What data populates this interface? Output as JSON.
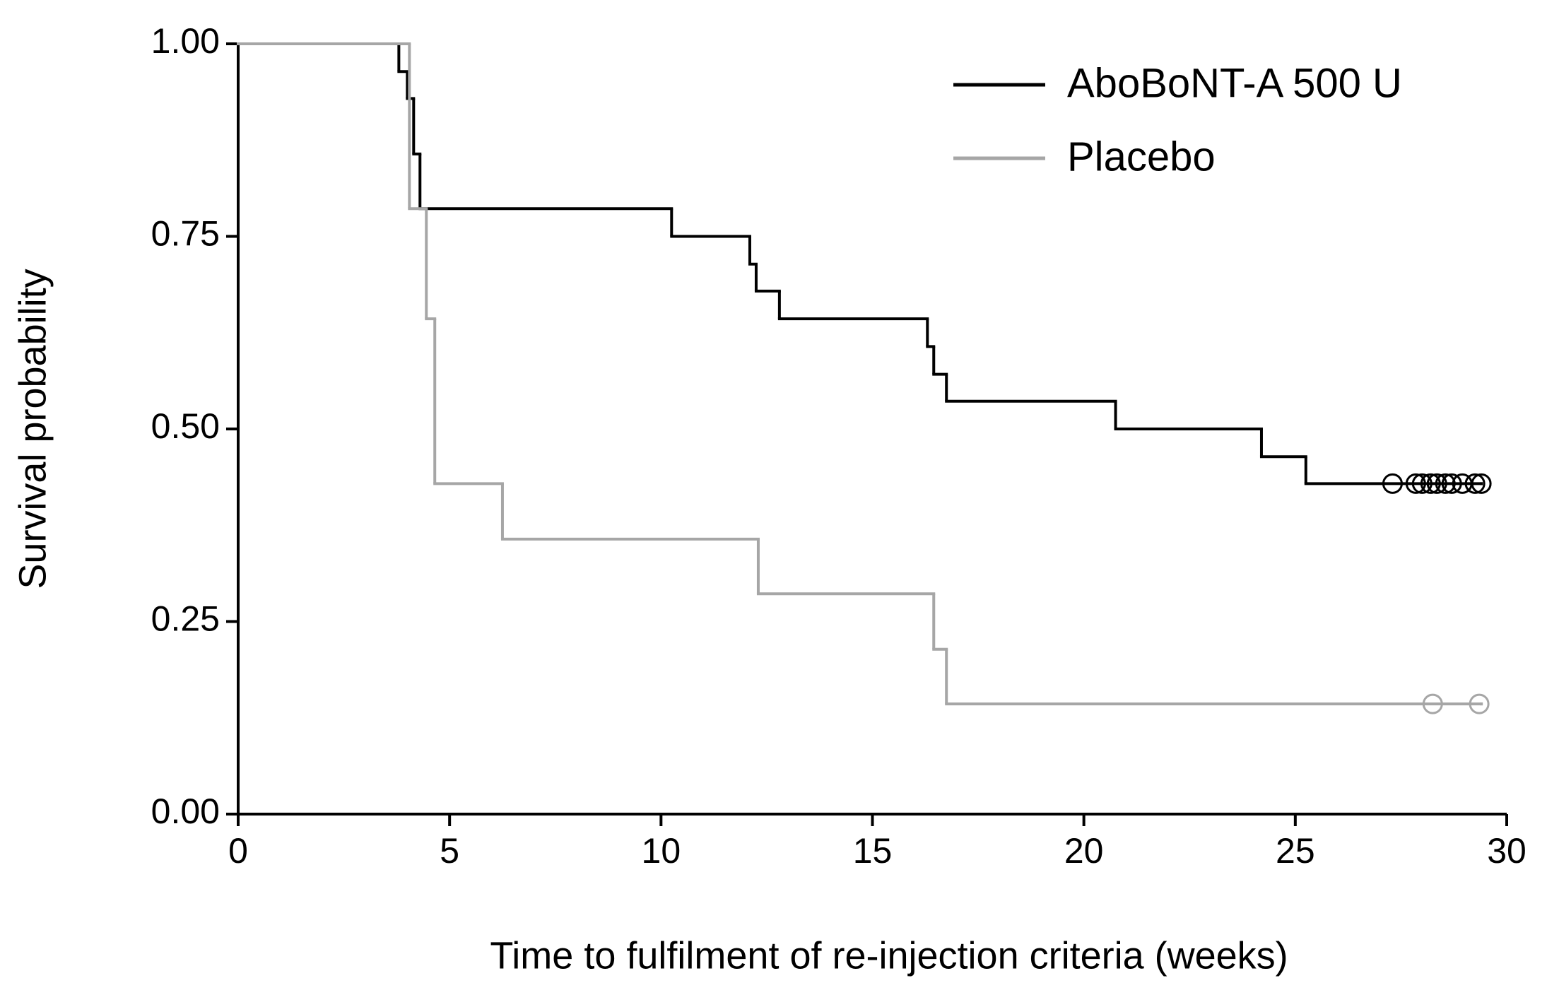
{
  "chart_data": {
    "type": "survival-step",
    "x_label": "Time to fulfilment of re-injection criteria (weeks)",
    "y_label": "Survival probability",
    "xlim": [
      0,
      30
    ],
    "xticks": [
      0,
      5,
      10,
      15,
      20,
      25,
      30
    ],
    "ylim": [
      0,
      1
    ],
    "yticks": [
      {
        "value": 0,
        "label": "0.00"
      },
      {
        "value": 0.25,
        "label": "0.25"
      },
      {
        "value": 0.5,
        "label": "0.50"
      },
      {
        "value": 0.75,
        "label": "0.75"
      },
      {
        "value": 1,
        "label": "1.00"
      }
    ],
    "legend": "top-right",
    "series": [
      {
        "name": "AboBoNT-A 500 U",
        "color": "#000000",
        "x": [
          0,
          3.8,
          4.0,
          4.15,
          4.3,
          10.25,
          12.1,
          12.25,
          12.8,
          16.3,
          16.45,
          16.75,
          20.75,
          24.2,
          25.25,
          29.4
        ],
        "values": [
          1,
          0.964,
          0.929,
          0.857,
          0.786,
          0.75,
          0.714,
          0.679,
          0.643,
          0.607,
          0.571,
          0.536,
          0.5,
          0.464,
          0.429,
          0.429
        ],
        "censored": {
          "x": [
            27.3,
            27.85,
            28.0,
            28.2,
            28.35,
            28.55,
            28.7,
            28.95,
            29.25,
            29.4
          ],
          "values": [
            0.429,
            0.429,
            0.429,
            0.429,
            0.429,
            0.429,
            0.429,
            0.429,
            0.429,
            0.429
          ]
        }
      },
      {
        "name": "Placebo",
        "color": "#a6a6a6",
        "x": [
          0,
          4.05,
          4.45,
          4.65,
          6.25,
          12.3,
          16.45,
          16.75,
          29.4
        ],
        "values": [
          1,
          0.786,
          0.643,
          0.429,
          0.357,
          0.286,
          0.214,
          0.143,
          0.143
        ],
        "censored": {
          "x": [
            28.25,
            29.35
          ],
          "values": [
            0.143,
            0.143
          ]
        }
      }
    ]
  }
}
